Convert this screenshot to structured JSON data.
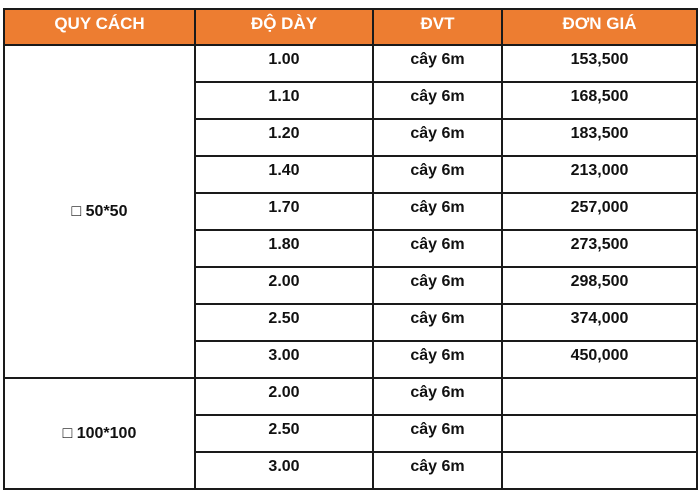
{
  "colors": {
    "header_bg": "#ED7D31",
    "header_text": "#FFFFFF",
    "border": "#1A1A1A"
  },
  "headers": [
    "QUY CÁCH",
    "ĐỘ DÀY",
    "ĐVT",
    "ĐƠN GIÁ"
  ],
  "groups": [
    {
      "spec": "□ 50*50",
      "rows": [
        {
          "thickness": "1.00",
          "unit": "cây 6m",
          "price": "153,500"
        },
        {
          "thickness": "1.10",
          "unit": "cây 6m",
          "price": "168,500"
        },
        {
          "thickness": "1.20",
          "unit": "cây 6m",
          "price": "183,500"
        },
        {
          "thickness": "1.40",
          "unit": "cây 6m",
          "price": "213,000"
        },
        {
          "thickness": "1.70",
          "unit": "cây 6m",
          "price": "257,000"
        },
        {
          "thickness": "1.80",
          "unit": "cây 6m",
          "price": "273,500"
        },
        {
          "thickness": "2.00",
          "unit": "cây 6m",
          "price": "298,500"
        },
        {
          "thickness": "2.50",
          "unit": "cây 6m",
          "price": "374,000"
        },
        {
          "thickness": "3.00",
          "unit": "cây 6m",
          "price": "450,000"
        }
      ]
    },
    {
      "spec": "□ 100*100",
      "rows": [
        {
          "thickness": "2.00",
          "unit": "cây 6m",
          "price": ""
        },
        {
          "thickness": "2.50",
          "unit": "cây 6m",
          "price": ""
        },
        {
          "thickness": "3.00",
          "unit": "cây 6m",
          "price": ""
        }
      ]
    }
  ]
}
